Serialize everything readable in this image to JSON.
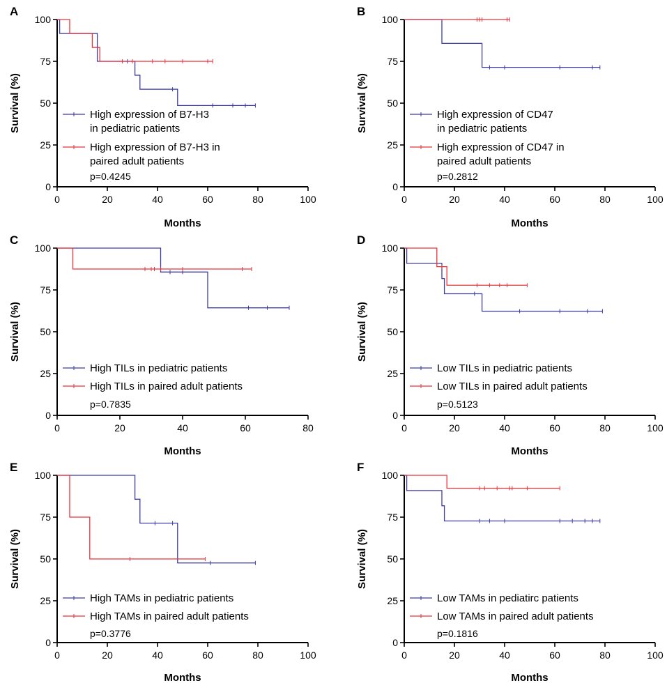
{
  "figure": {
    "ylabel": "Survival (%)",
    "xlabel": "Months",
    "y_ticks": [
      "0",
      "25",
      "50",
      "75",
      "100"
    ]
  },
  "colors": {
    "pediatric": "#3b3ba8",
    "adult": "#e8333a"
  },
  "chart_data": [
    {
      "panel": "A",
      "type": "line",
      "step": true,
      "xlim": [
        0,
        100
      ],
      "ylim": [
        0,
        100
      ],
      "x_ticks": [
        0,
        20,
        40,
        60,
        80,
        100
      ],
      "y_ticks": [
        0,
        25,
        50,
        75,
        100
      ],
      "xlabel": "Months",
      "ylabel": "Survival (%)",
      "series": [
        {
          "name": "High expression of B7-H3 in pediatric patients",
          "legend_lines": [
            "High expression of B7-H3",
            "in pediatric patients"
          ],
          "color": "#3b3ba8",
          "steps": [
            [
              0,
              100
            ],
            [
              1,
              91.7
            ],
            [
              16,
              75
            ],
            [
              31,
              66.7
            ],
            [
              33,
              58.3
            ],
            [
              48,
              48.6
            ],
            [
              79,
              48.6
            ]
          ],
          "censored": [
            [
              28,
              75
            ],
            [
              46,
              58.3
            ],
            [
              62,
              48.6
            ],
            [
              70,
              48.6
            ],
            [
              75,
              48.6
            ],
            [
              79,
              48.6
            ]
          ]
        },
        {
          "name": "High expression of B7-H3 in paired adult patients",
          "legend_lines": [
            "High expression of B7-H3 in",
            "paired adult patients"
          ],
          "color": "#e8333a",
          "steps": [
            [
              0,
              100
            ],
            [
              5,
              91.7
            ],
            [
              14,
              83.3
            ],
            [
              17,
              75
            ],
            [
              62,
              75
            ]
          ],
          "censored": [
            [
              26,
              75
            ],
            [
              30,
              75
            ],
            [
              38,
              75
            ],
            [
              43,
              75
            ],
            [
              50,
              75
            ],
            [
              60,
              75
            ],
            [
              62,
              75
            ]
          ]
        }
      ],
      "annotation": "p=0.4245"
    },
    {
      "panel": "B",
      "type": "line",
      "step": true,
      "xlim": [
        0,
        100
      ],
      "ylim": [
        0,
        100
      ],
      "x_ticks": [
        0,
        20,
        40,
        60,
        80,
        100
      ],
      "y_ticks": [
        0,
        25,
        50,
        75,
        100
      ],
      "xlabel": "Months",
      "ylabel": "Survival (%)",
      "series": [
        {
          "name": "High expression of CD47 in pediatric patients",
          "legend_lines": [
            "High expression of CD47",
            "in pediatric patients"
          ],
          "color": "#3b3ba8",
          "steps": [
            [
              0,
              100
            ],
            [
              15,
              85.7
            ],
            [
              31,
              71.4
            ],
            [
              78,
              71.4
            ]
          ],
          "censored": [
            [
              34,
              71.4
            ],
            [
              40,
              71.4
            ],
            [
              62,
              71.4
            ],
            [
              75,
              71.4
            ],
            [
              78,
              71.4
            ]
          ]
        },
        {
          "name": "High expression of CD47 in paired adult patients",
          "legend_lines": [
            "High expression of CD47 in",
            "paired adult patients"
          ],
          "color": "#e8333a",
          "steps": [
            [
              0,
              100
            ],
            [
              42,
              100
            ]
          ],
          "censored": [
            [
              29,
              100
            ],
            [
              30,
              100
            ],
            [
              31,
              100
            ],
            [
              41,
              100
            ],
            [
              42,
              100
            ]
          ]
        }
      ],
      "annotation": "p=0.2812"
    },
    {
      "panel": "C",
      "type": "line",
      "step": true,
      "xlim": [
        0,
        80
      ],
      "ylim": [
        0,
        100
      ],
      "x_ticks": [
        0,
        20,
        40,
        60,
        80
      ],
      "y_ticks": [
        0,
        25,
        50,
        75,
        100
      ],
      "xlabel": "Months",
      "ylabel": "Survival (%)",
      "series": [
        {
          "name": "High TILs in pediatric patients",
          "legend_lines": [
            "High TILs in pediatric patients"
          ],
          "color": "#3b3ba8",
          "steps": [
            [
              0,
              100
            ],
            [
              33,
              85.7
            ],
            [
              48,
              64.3
            ],
            [
              74,
              64.3
            ]
          ],
          "censored": [
            [
              36,
              85.7
            ],
            [
              40,
              85.7
            ],
            [
              61,
              64.3
            ],
            [
              67,
              64.3
            ],
            [
              74,
              64.3
            ]
          ]
        },
        {
          "name": "High TILs in paired adult patients",
          "legend_lines": [
            "High TILs in paired adult patients"
          ],
          "color": "#e8333a",
          "steps": [
            [
              0,
              100
            ],
            [
              5,
              87.5
            ],
            [
              62,
              87.5
            ]
          ],
          "censored": [
            [
              28,
              87.5
            ],
            [
              30,
              87.5
            ],
            [
              31,
              87.5
            ],
            [
              33,
              87.5
            ],
            [
              40,
              87.5
            ],
            [
              59,
              87.5
            ],
            [
              62,
              87.5
            ]
          ]
        }
      ],
      "annotation": "p=0.7835"
    },
    {
      "panel": "D",
      "type": "line",
      "step": true,
      "xlim": [
        0,
        100
      ],
      "ylim": [
        0,
        100
      ],
      "x_ticks": [
        0,
        20,
        40,
        60,
        80,
        100
      ],
      "y_ticks": [
        0,
        25,
        50,
        75,
        100
      ],
      "xlabel": "Months",
      "ylabel": "Survival (%)",
      "series": [
        {
          "name": "Low TILs in pediatric patients",
          "legend_lines": [
            "Low TILs in pediatric patients"
          ],
          "color": "#3b3ba8",
          "steps": [
            [
              0,
              100
            ],
            [
              1,
              90.9
            ],
            [
              15,
              81.8
            ],
            [
              16,
              72.7
            ],
            [
              31,
              62.3
            ],
            [
              79,
              62.3
            ]
          ],
          "censored": [
            [
              28,
              72.7
            ],
            [
              46,
              62.3
            ],
            [
              62,
              62.3
            ],
            [
              73,
              62.3
            ],
            [
              79,
              62.3
            ]
          ]
        },
        {
          "name": "Low TILs in paired adult patients",
          "legend_lines": [
            "Low TILs in paired adult patients"
          ],
          "color": "#e8333a",
          "steps": [
            [
              0,
              100
            ],
            [
              13,
              88.9
            ],
            [
              17,
              77.8
            ],
            [
              49,
              77.8
            ]
          ],
          "censored": [
            [
              15,
              88.9
            ],
            [
              29,
              77.8
            ],
            [
              34,
              77.8
            ],
            [
              38,
              77.8
            ],
            [
              41,
              77.8
            ],
            [
              49,
              77.8
            ]
          ]
        }
      ],
      "annotation": "p=0.5123"
    },
    {
      "panel": "E",
      "type": "line",
      "step": true,
      "xlim": [
        0,
        100
      ],
      "ylim": [
        0,
        100
      ],
      "x_ticks": [
        0,
        20,
        40,
        60,
        80,
        100
      ],
      "y_ticks": [
        0,
        25,
        50,
        75,
        100
      ],
      "xlabel": "Months",
      "ylabel": "Survival (%)",
      "series": [
        {
          "name": "High TAMs in pediatric patients",
          "legend_lines": [
            "High TAMs in pediatric patients"
          ],
          "color": "#3b3ba8",
          "steps": [
            [
              0,
              100
            ],
            [
              31,
              85.7
            ],
            [
              33,
              71.4
            ],
            [
              48,
              47.6
            ],
            [
              79,
              47.6
            ]
          ],
          "censored": [
            [
              39,
              71.4
            ],
            [
              46,
              71.4
            ],
            [
              61,
              47.6
            ],
            [
              79,
              47.6
            ]
          ]
        },
        {
          "name": "High TAMs in paired adult patients",
          "legend_lines": [
            "High TAMs in paired adult patients"
          ],
          "color": "#e8333a",
          "steps": [
            [
              0,
              100
            ],
            [
              5,
              75
            ],
            [
              13,
              50
            ],
            [
              59,
              50
            ]
          ],
          "censored": [
            [
              29,
              50
            ],
            [
              59,
              50
            ]
          ]
        }
      ],
      "annotation": "p=0.3776"
    },
    {
      "panel": "F",
      "type": "line",
      "step": true,
      "xlim": [
        0,
        100
      ],
      "ylim": [
        0,
        100
      ],
      "x_ticks": [
        0,
        20,
        40,
        60,
        80,
        100
      ],
      "y_ticks": [
        0,
        25,
        50,
        75,
        100
      ],
      "xlabel": "Months",
      "ylabel": "Survival (%)",
      "series": [
        {
          "name": "Low TAMs in pediatirc patients",
          "legend_lines": [
            "Low TAMs in pediatirc patients"
          ],
          "color": "#3b3ba8",
          "steps": [
            [
              0,
              100
            ],
            [
              1,
              90.9
            ],
            [
              15,
              81.8
            ],
            [
              16,
              72.7
            ],
            [
              78,
              72.7
            ]
          ],
          "censored": [
            [
              30,
              72.7
            ],
            [
              34,
              72.7
            ],
            [
              40,
              72.7
            ],
            [
              62,
              72.7
            ],
            [
              67,
              72.7
            ],
            [
              72,
              72.7
            ],
            [
              75,
              72.7
            ],
            [
              78,
              72.7
            ]
          ]
        },
        {
          "name": "Low TAMs in paired adult patients",
          "legend_lines": [
            "Low TAMs in paired adult patients"
          ],
          "color": "#e8333a",
          "steps": [
            [
              0,
              100
            ],
            [
              17,
              92.3
            ],
            [
              62,
              92.3
            ]
          ],
          "censored": [
            [
              30,
              92.3
            ],
            [
              32,
              92.3
            ],
            [
              37,
              92.3
            ],
            [
              42,
              92.3
            ],
            [
              43,
              92.3
            ],
            [
              49,
              92.3
            ],
            [
              62,
              92.3
            ]
          ]
        }
      ],
      "annotation": "p=0.1816"
    }
  ]
}
